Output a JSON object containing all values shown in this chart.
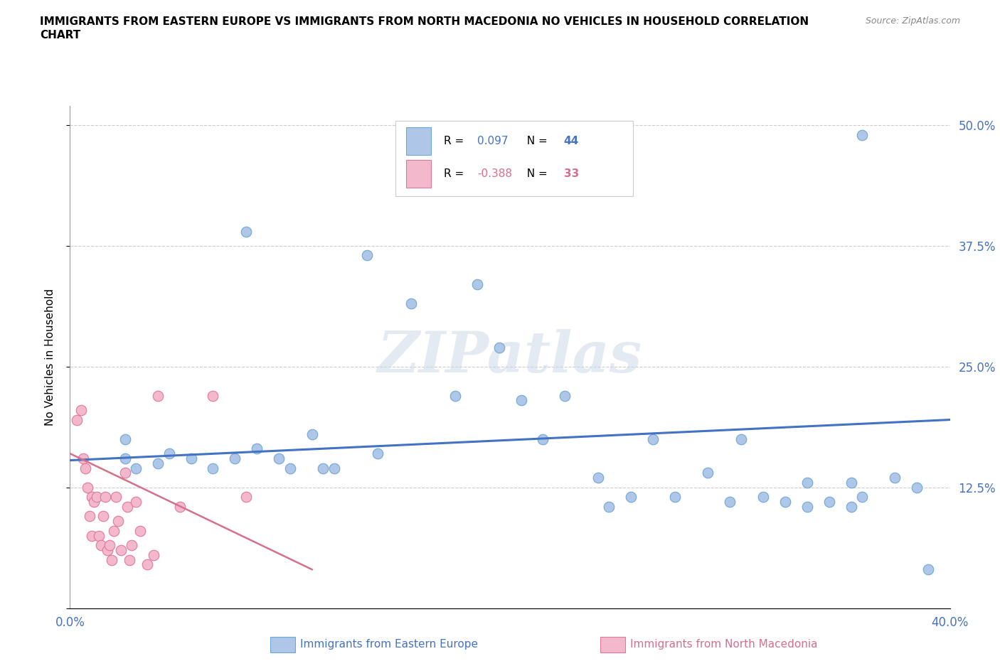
{
  "title_line1": "IMMIGRANTS FROM EASTERN EUROPE VS IMMIGRANTS FROM NORTH MACEDONIA NO VEHICLES IN HOUSEHOLD CORRELATION",
  "title_line2": "CHART",
  "source": "Source: ZipAtlas.com",
  "xlabel_blue": "Immigrants from Eastern Europe",
  "xlabel_pink": "Immigrants from North Macedonia",
  "ylabel": "No Vehicles in Household",
  "xlim": [
    0.0,
    0.4
  ],
  "ylim": [
    0.0,
    0.52
  ],
  "r_blue": 0.097,
  "n_blue": 44,
  "r_pink": -0.388,
  "n_pink": 33,
  "blue_color": "#aec6e8",
  "blue_edge": "#6fa8d4",
  "pink_color": "#f4b8cc",
  "pink_edge": "#e07898",
  "line_blue": "#4472c4",
  "line_pink": "#d4708a",
  "blue_scatter_x": [
    0.025,
    0.08,
    0.135,
    0.155,
    0.175,
    0.185,
    0.195,
    0.205,
    0.215,
    0.225,
    0.24,
    0.245,
    0.255,
    0.265,
    0.275,
    0.29,
    0.3,
    0.305,
    0.315,
    0.325,
    0.335,
    0.335,
    0.345,
    0.355,
    0.36,
    0.375,
    0.385,
    0.39,
    0.025,
    0.03,
    0.04,
    0.045,
    0.055,
    0.065,
    0.075,
    0.085,
    0.095,
    0.1,
    0.11,
    0.115,
    0.12,
    0.14,
    0.355,
    0.36
  ],
  "blue_scatter_y": [
    0.175,
    0.39,
    0.365,
    0.315,
    0.22,
    0.335,
    0.27,
    0.215,
    0.175,
    0.22,
    0.135,
    0.105,
    0.115,
    0.175,
    0.115,
    0.14,
    0.11,
    0.175,
    0.115,
    0.11,
    0.13,
    0.105,
    0.11,
    0.105,
    0.115,
    0.135,
    0.125,
    0.04,
    0.155,
    0.145,
    0.15,
    0.16,
    0.155,
    0.145,
    0.155,
    0.165,
    0.155,
    0.145,
    0.18,
    0.145,
    0.145,
    0.16,
    0.13,
    0.49
  ],
  "pink_scatter_x": [
    0.003,
    0.005,
    0.006,
    0.007,
    0.008,
    0.009,
    0.01,
    0.01,
    0.011,
    0.012,
    0.013,
    0.014,
    0.015,
    0.016,
    0.017,
    0.018,
    0.019,
    0.02,
    0.021,
    0.022,
    0.023,
    0.025,
    0.026,
    0.027,
    0.028,
    0.03,
    0.032,
    0.035,
    0.038,
    0.04,
    0.05,
    0.065,
    0.08
  ],
  "pink_scatter_y": [
    0.195,
    0.205,
    0.155,
    0.145,
    0.125,
    0.095,
    0.115,
    0.075,
    0.11,
    0.115,
    0.075,
    0.065,
    0.095,
    0.115,
    0.06,
    0.065,
    0.05,
    0.08,
    0.115,
    0.09,
    0.06,
    0.14,
    0.105,
    0.05,
    0.065,
    0.11,
    0.08,
    0.045,
    0.055,
    0.22,
    0.105,
    0.22,
    0.115
  ],
  "watermark": "ZIPatlas",
  "blue_line_x": [
    0.0,
    0.4
  ],
  "blue_line_y": [
    0.153,
    0.195
  ],
  "pink_line_x": [
    0.0,
    0.11
  ],
  "pink_line_y": [
    0.16,
    0.04
  ]
}
